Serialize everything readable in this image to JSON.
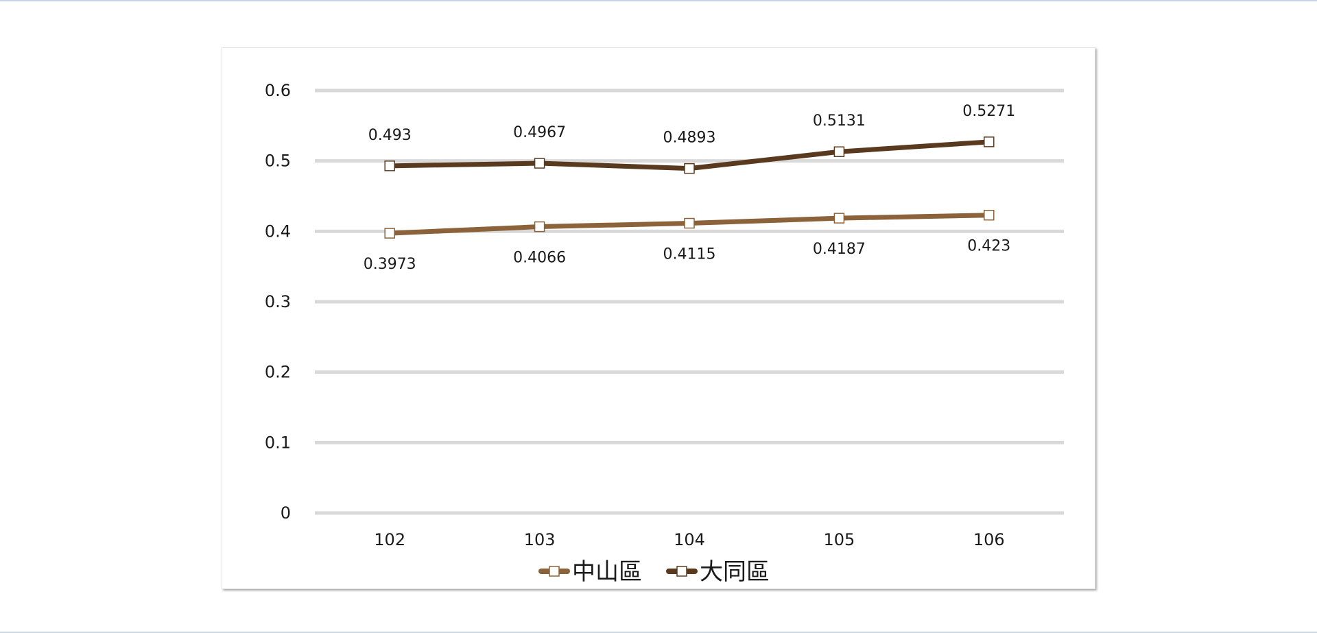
{
  "chart_data": {
    "type": "line",
    "title": "",
    "xlabel": "",
    "ylabel": "",
    "categories": [
      "102",
      "103",
      "104",
      "105",
      "106"
    ],
    "ylim": [
      0,
      0.6
    ],
    "y_ticks": [
      "0",
      "0.1",
      "0.2",
      "0.3",
      "0.4",
      "0.5",
      "0.6"
    ],
    "grid": true,
    "legend_position": "bottom",
    "series": [
      {
        "name": "中山區",
        "color": "#8b6239",
        "marker": "square-white",
        "values": [
          0.3973,
          0.4066,
          0.4115,
          0.4187,
          0.423
        ],
        "labels": [
          "0.3973",
          "0.4066",
          "0.4115",
          "0.4187",
          "0.423"
        ]
      },
      {
        "name": "大同區",
        "color": "#5a3a1e",
        "marker": "square-white",
        "values": [
          0.493,
          0.4967,
          0.4893,
          0.5131,
          0.5271
        ],
        "labels": [
          "0.493",
          "0.4967",
          "0.4893",
          "0.5131",
          "0.5271"
        ]
      }
    ]
  }
}
